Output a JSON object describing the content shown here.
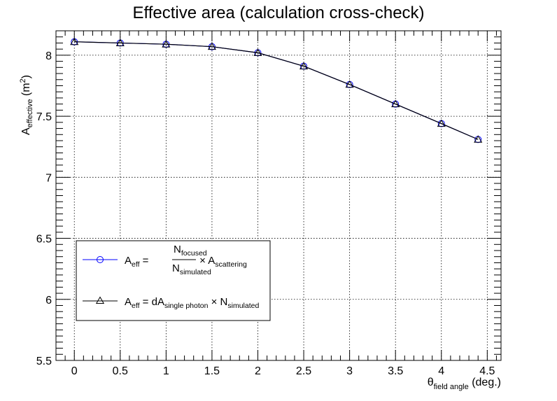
{
  "chart_data": {
    "type": "line",
    "title": "Effective area (calculation cross-check)",
    "xlabel": {
      "main": "θ",
      "sub": "field angle",
      "unit": " (deg.)"
    },
    "ylabel": {
      "main": "A",
      "sub": "effective",
      "unit_open": " (m",
      "unit_sup": "2",
      "unit_close": ")"
    },
    "xlim": [
      -0.2,
      4.65
    ],
    "ylim": [
      5.5,
      8.2
    ],
    "xticks": [
      "0",
      "0.5",
      "1",
      "1.5",
      "2",
      "2.5",
      "3",
      "3.5",
      "4",
      "4.5"
    ],
    "yticks": [
      "5.5",
      "6",
      "6.5",
      "7",
      "7.5",
      "8"
    ],
    "grid": true,
    "legend_position": "bottom-left",
    "x": [
      0,
      0.5,
      1,
      1.5,
      2,
      2.5,
      3,
      3.5,
      4,
      4.4
    ],
    "series": [
      {
        "name": "A_eff = N_focused / N_simulated × A_scattering",
        "marker": "circle",
        "color": "#0000ff",
        "values": [
          8.11,
          8.1,
          8.09,
          8.07,
          8.02,
          7.91,
          7.76,
          7.6,
          7.44,
          7.31
        ],
        "legend": {
          "lhs": "A",
          "lhs_sub": "eff",
          "eq": " = ",
          "num": "N",
          "num_sub": "focused",
          "den": "N",
          "den_sub": "simulated",
          "times": " × ",
          "rhs": "A",
          "rhs_sub": "scattering"
        }
      },
      {
        "name": "A_eff = dA_single photon × N_simulated",
        "marker": "triangle",
        "color": "#000000",
        "values": [
          8.11,
          8.1,
          8.09,
          8.07,
          8.02,
          7.91,
          7.76,
          7.6,
          7.44,
          7.31
        ],
        "legend": {
          "lhs": "A",
          "lhs_sub": "eff",
          "eq": " = ",
          "t1": "dA",
          "t1_sub": "single photon",
          "times": " × ",
          "t2": "N",
          "t2_sub": "simulated"
        }
      }
    ]
  }
}
